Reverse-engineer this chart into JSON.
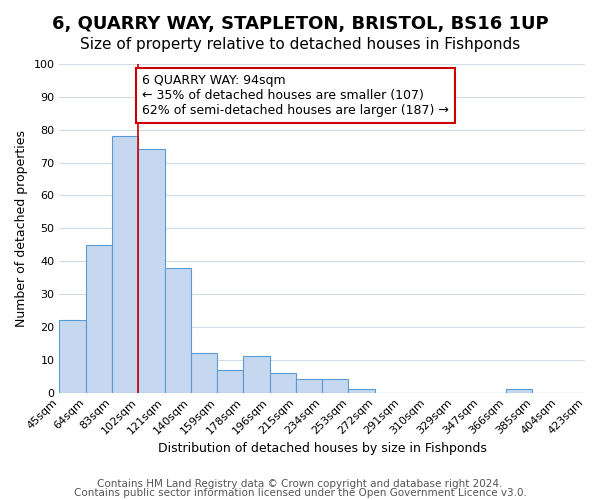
{
  "title": "6, QUARRY WAY, STAPLETON, BRISTOL, BS16 1UP",
  "subtitle": "Size of property relative to detached houses in Fishponds",
  "xlabel": "Distribution of detached houses by size in Fishponds",
  "ylabel": "Number of detached properties",
  "bar_heights": [
    22,
    45,
    78,
    74,
    38,
    12,
    7,
    11,
    6,
    4,
    4,
    1,
    0,
    0,
    0,
    0,
    0,
    1,
    0,
    0
  ],
  "bin_labels": [
    "45sqm",
    "64sqm",
    "83sqm",
    "102sqm",
    "121sqm",
    "140sqm",
    "159sqm",
    "178sqm",
    "196sqm",
    "215sqm",
    "234sqm",
    "253sqm",
    "272sqm",
    "291sqm",
    "310sqm",
    "329sqm",
    "347sqm",
    "366sqm",
    "385sqm",
    "404sqm",
    "423sqm"
  ],
  "bar_color": "#c5d8f0",
  "bar_edge_color": "#5b9bd5",
  "vline_x": 3,
  "vline_color": "#cc0000",
  "annotation_line1": "6 QUARRY WAY: 94sqm",
  "annotation_line2": "← 35% of detached houses are smaller (107)",
  "annotation_line3": "62% of semi-detached houses are larger (187) →",
  "annotation_box_color": "#ffffff",
  "annotation_box_edge_color": "#cc0000",
  "ylim": [
    0,
    100
  ],
  "footer_line1": "Contains HM Land Registry data © Crown copyright and database right 2024.",
  "footer_line2": "Contains public sector information licensed under the Open Government Licence v3.0.",
  "background_color": "#ffffff",
  "grid_color": "#d0dce8",
  "title_fontsize": 13,
  "subtitle_fontsize": 11,
  "axis_label_fontsize": 9,
  "tick_fontsize": 8,
  "annotation_fontsize": 9,
  "footer_fontsize": 7.5
}
